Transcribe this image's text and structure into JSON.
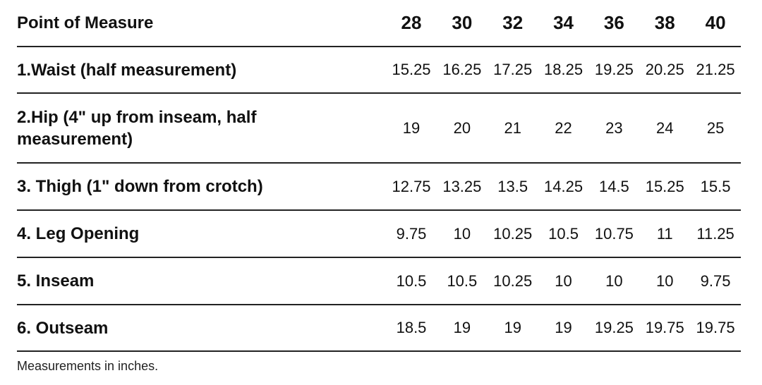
{
  "table": {
    "header": [
      "Point of Measure",
      "28",
      "30",
      "32",
      "34",
      "36",
      "38",
      "40"
    ],
    "rows": [
      {
        "label": "1.Waist (half measurement)",
        "values": [
          "15.25",
          "16.25",
          "17.25",
          "18.25",
          "19.25",
          "20.25",
          "21.25"
        ]
      },
      {
        "label": "2.Hip (4\" up from inseam, half measurement)",
        "values": [
          "19",
          "20",
          "21",
          "22",
          "23",
          "24",
          "25"
        ]
      },
      {
        "label": "3. Thigh (1\" down from crotch)",
        "values": [
          "12.75",
          "13.25",
          "13.5",
          "14.25",
          "14.5",
          "15.25",
          "15.5"
        ]
      },
      {
        "label": "4. Leg Opening",
        "values": [
          "9.75",
          "10",
          "10.25",
          "10.5",
          "10.75",
          "11",
          "11.25"
        ]
      },
      {
        "label": "5. Inseam",
        "values": [
          "10.5",
          "10.5",
          "10.25",
          "10",
          "10",
          "10",
          "9.75"
        ]
      },
      {
        "label": "6. Outseam",
        "values": [
          "18.5",
          "19",
          "19",
          "19",
          "19.25",
          "19.75",
          "19.75"
        ]
      }
    ]
  },
  "note": "Measurements in inches."
}
